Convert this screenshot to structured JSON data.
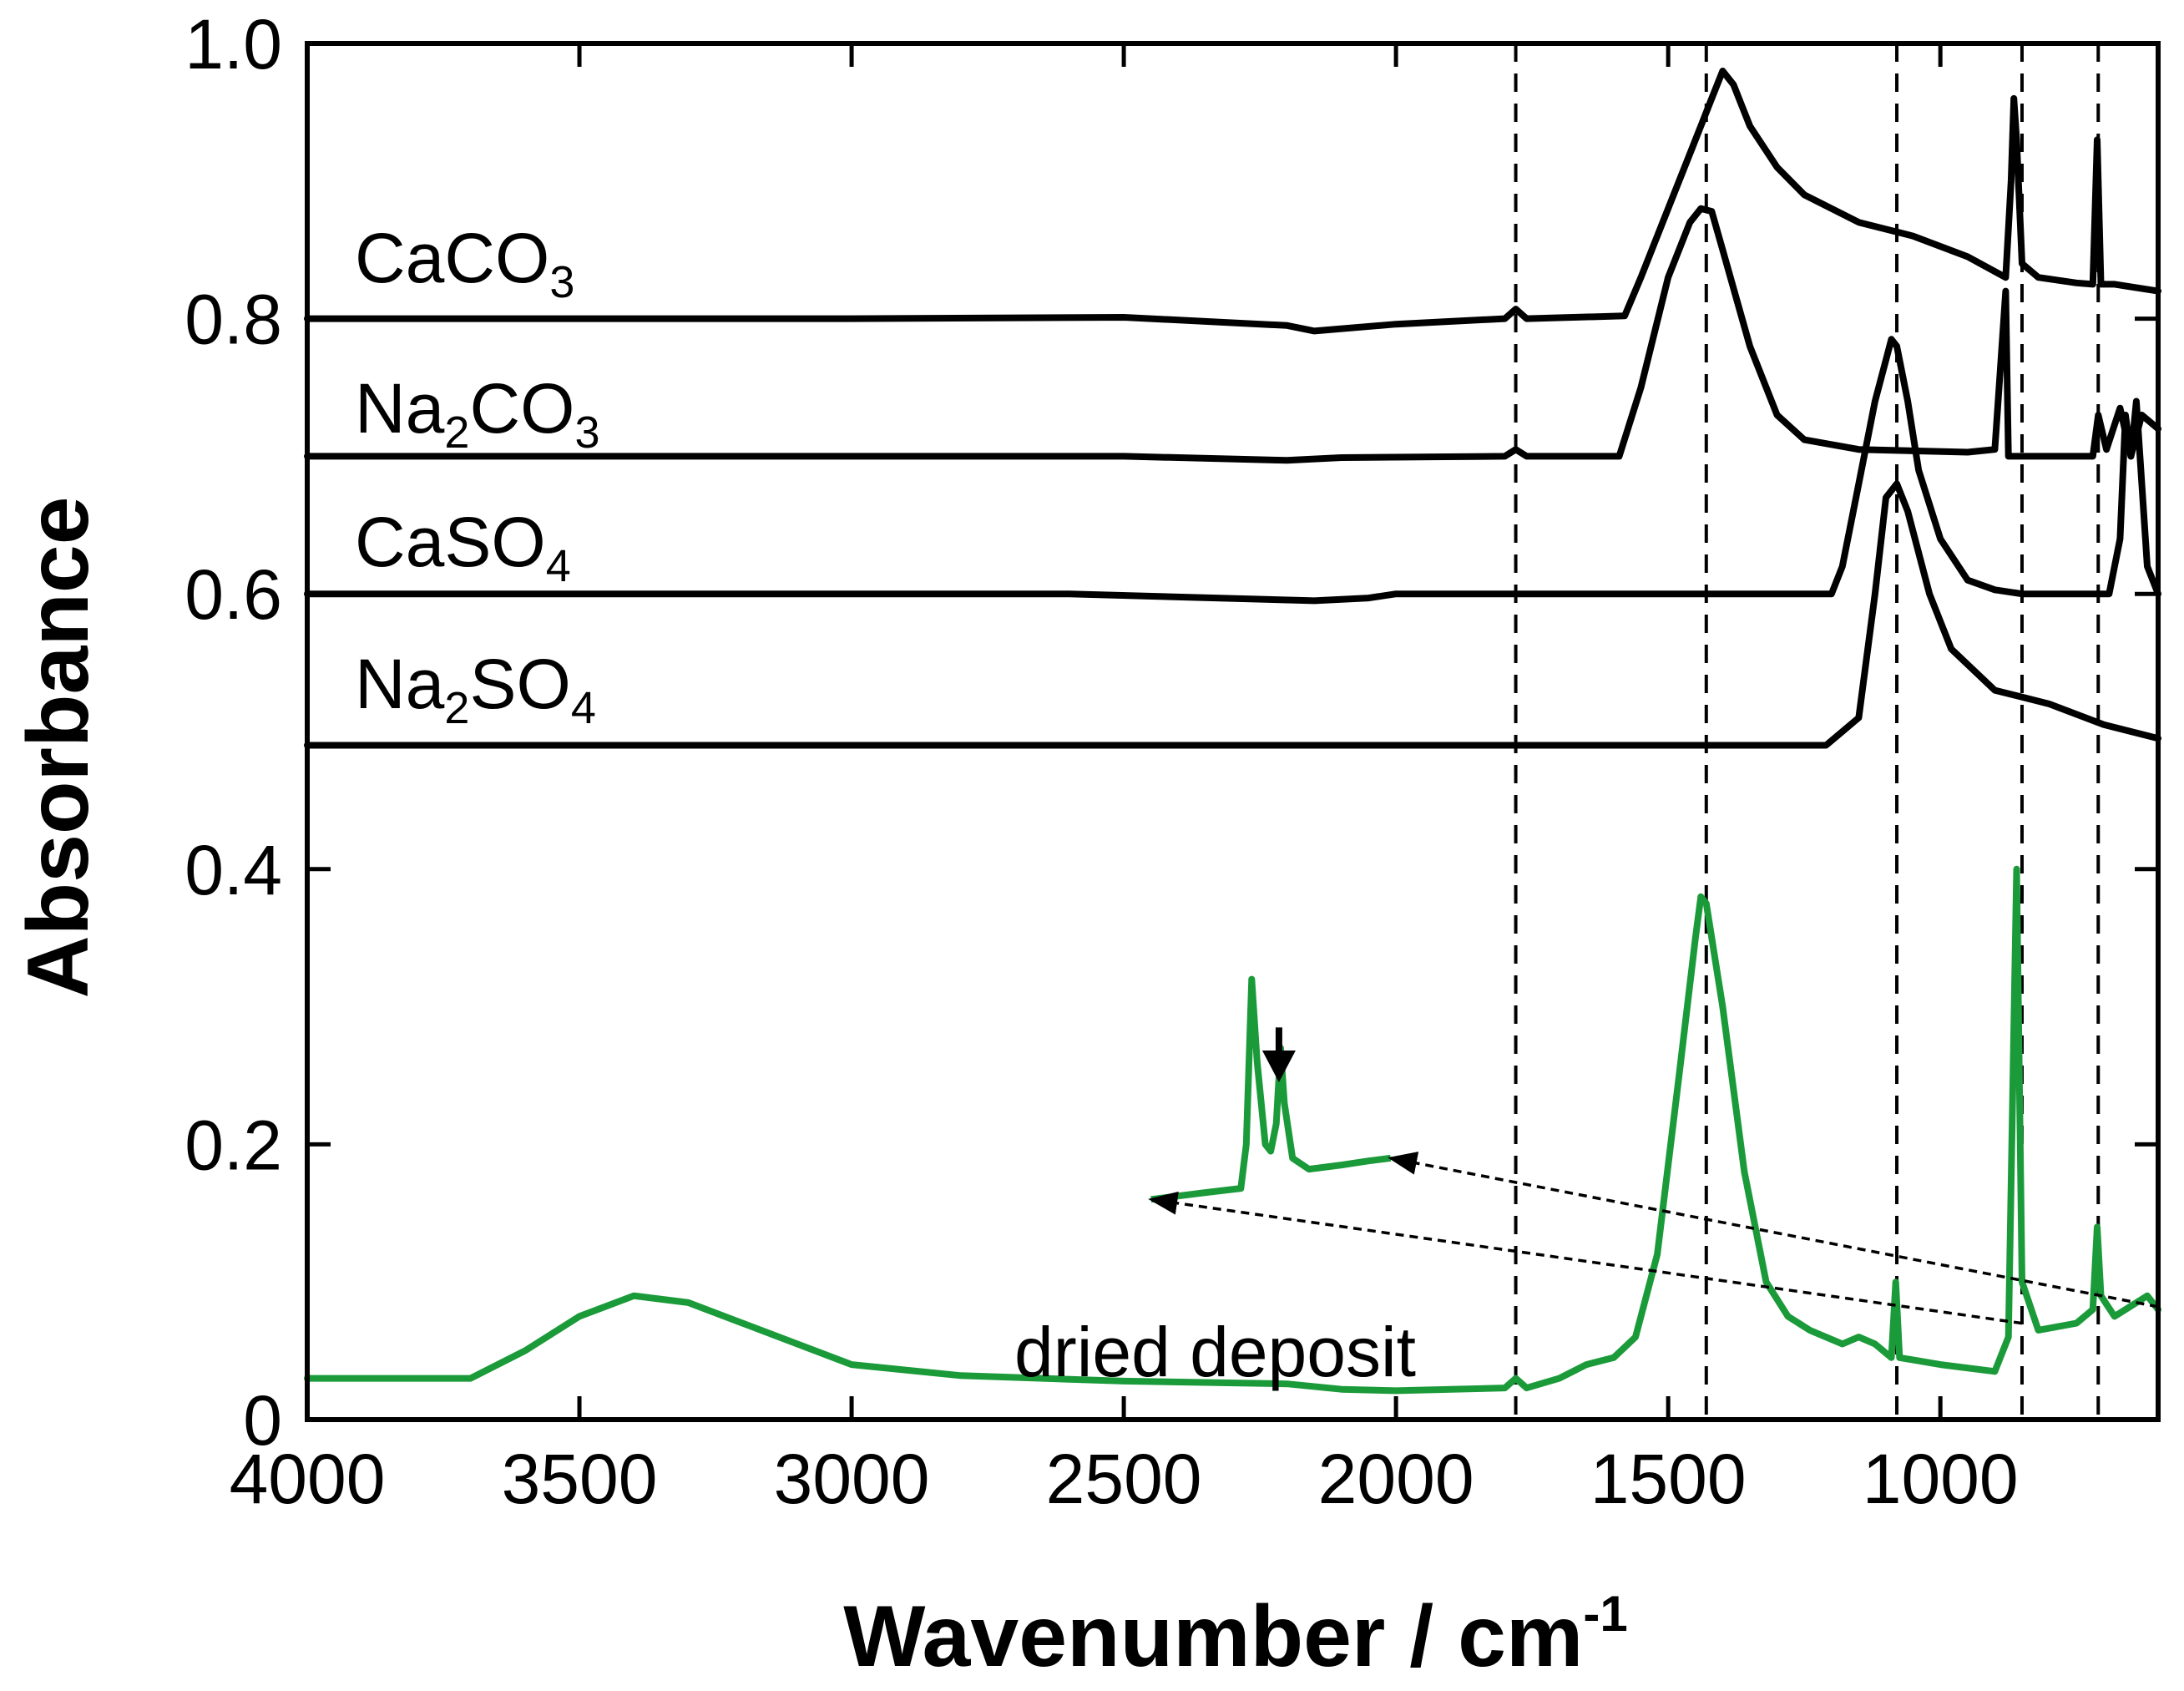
{
  "chart_data": {
    "type": "line",
    "xlabel": "Wavenumber / cm",
    "xlabel_superscript": "-1",
    "ylabel": "Absorbance",
    "xlim": [
      4000,
      600
    ],
    "ylim": [
      0,
      1.0
    ],
    "x_ticks": [
      4000,
      3500,
      3000,
      2500,
      2000,
      1500,
      1000
    ],
    "x_tick_labels": [
      "4000",
      "3500",
      "3000",
      "2500",
      "2000",
      "1500",
      "1000"
    ],
    "y_ticks": [
      0,
      0.2,
      0.4,
      0.6,
      0.8,
      1.0
    ],
    "y_tick_labels": [
      "0",
      "0.2",
      "0.4",
      "0.6",
      "0.8",
      "1.0"
    ],
    "reference_lines_x": [
      1780,
      1430,
      1080,
      850,
      710
    ],
    "series": [
      {
        "name": "CaCO3",
        "label_main": [
          "Ca",
          "CO"
        ],
        "label_sub": "3",
        "color": "#000000",
        "points": [
          [
            4000,
            0.8
          ],
          [
            3000,
            0.8
          ],
          [
            2500,
            0.801
          ],
          [
            2200,
            0.795
          ],
          [
            2150,
            0.791
          ],
          [
            2000,
            0.796
          ],
          [
            1800,
            0.8
          ],
          [
            1780,
            0.807
          ],
          [
            1760,
            0.8
          ],
          [
            1580,
            0.802
          ],
          [
            1550,
            0.83
          ],
          [
            1500,
            0.88
          ],
          [
            1450,
            0.93
          ],
          [
            1420,
            0.96
          ],
          [
            1400,
            0.98
          ],
          [
            1380,
            0.97
          ],
          [
            1350,
            0.94
          ],
          [
            1300,
            0.91
          ],
          [
            1250,
            0.89
          ],
          [
            1150,
            0.87
          ],
          [
            1050,
            0.86
          ],
          [
            950,
            0.845
          ],
          [
            880,
            0.83
          ],
          [
            870,
            0.9
          ],
          [
            865,
            0.96
          ],
          [
            860,
            0.93
          ],
          [
            850,
            0.84
          ],
          [
            820,
            0.83
          ],
          [
            750,
            0.826
          ],
          [
            720,
            0.825
          ],
          [
            712,
            0.93
          ],
          [
            705,
            0.825
          ],
          [
            680,
            0.825
          ],
          [
            600,
            0.82
          ]
        ]
      },
      {
        "name": "Na2CO3",
        "label_main": [
          "Na",
          "CO"
        ],
        "label_sub_1": "2",
        "label_sub_2": "3",
        "color": "#000000",
        "points": [
          [
            4000,
            0.7
          ],
          [
            2500,
            0.7
          ],
          [
            2200,
            0.697
          ],
          [
            2100,
            0.699
          ],
          [
            1800,
            0.7
          ],
          [
            1780,
            0.705
          ],
          [
            1760,
            0.7
          ],
          [
            1590,
            0.7
          ],
          [
            1550,
            0.75
          ],
          [
            1500,
            0.83
          ],
          [
            1460,
            0.87
          ],
          [
            1440,
            0.88
          ],
          [
            1420,
            0.878
          ],
          [
            1400,
            0.85
          ],
          [
            1350,
            0.78
          ],
          [
            1300,
            0.73
          ],
          [
            1250,
            0.712
          ],
          [
            1150,
            0.705
          ],
          [
            950,
            0.703
          ],
          [
            900,
            0.705
          ],
          [
            880,
            0.82
          ],
          [
            875,
            0.7
          ],
          [
            850,
            0.7
          ],
          [
            720,
            0.7
          ],
          [
            710,
            0.73
          ],
          [
            695,
            0.705
          ],
          [
            670,
            0.735
          ],
          [
            650,
            0.7
          ],
          [
            630,
            0.73
          ],
          [
            600,
            0.72
          ]
        ]
      },
      {
        "name": "CaSO4",
        "label_main": [
          "CaSO"
        ],
        "label_sub": "4",
        "color": "#000000",
        "points": [
          [
            4000,
            0.6
          ],
          [
            2600,
            0.6
          ],
          [
            2150,
            0.595
          ],
          [
            2050,
            0.597
          ],
          [
            2000,
            0.6
          ],
          [
            1200,
            0.6
          ],
          [
            1180,
            0.62
          ],
          [
            1150,
            0.68
          ],
          [
            1120,
            0.74
          ],
          [
            1100,
            0.77
          ],
          [
            1090,
            0.785
          ],
          [
            1080,
            0.78
          ],
          [
            1060,
            0.74
          ],
          [
            1040,
            0.69
          ],
          [
            1000,
            0.64
          ],
          [
            950,
            0.61
          ],
          [
            900,
            0.603
          ],
          [
            850,
            0.6
          ],
          [
            720,
            0.6
          ],
          [
            690,
            0.6
          ],
          [
            670,
            0.64
          ],
          [
            660,
            0.73
          ],
          [
            650,
            0.7
          ],
          [
            640,
            0.74
          ],
          [
            620,
            0.62
          ],
          [
            600,
            0.6
          ]
        ]
      },
      {
        "name": "Na2SO4",
        "label_main": [
          "Na",
          "SO"
        ],
        "label_sub_1": "2",
        "label_sub_2": "4",
        "color": "#000000",
        "points": [
          [
            4000,
            0.49
          ],
          [
            2500,
            0.49
          ],
          [
            1500,
            0.49
          ],
          [
            1210,
            0.49
          ],
          [
            1150,
            0.51
          ],
          [
            1120,
            0.6
          ],
          [
            1100,
            0.67
          ],
          [
            1080,
            0.68
          ],
          [
            1060,
            0.66
          ],
          [
            1020,
            0.6
          ],
          [
            980,
            0.56
          ],
          [
            900,
            0.53
          ],
          [
            850,
            0.525
          ],
          [
            800,
            0.52
          ],
          [
            700,
            0.505
          ],
          [
            600,
            0.495
          ]
        ]
      },
      {
        "name": "dried deposit",
        "label_main": [
          "dried deposit"
        ],
        "color": "#1b9a3a",
        "points": [
          [
            4000,
            0.03
          ],
          [
            3700,
            0.03
          ],
          [
            3600,
            0.05
          ],
          [
            3500,
            0.075
          ],
          [
            3400,
            0.09
          ],
          [
            3300,
            0.085
          ],
          [
            3200,
            0.07
          ],
          [
            3100,
            0.055
          ],
          [
            3000,
            0.04
          ],
          [
            2800,
            0.032
          ],
          [
            2500,
            0.028
          ],
          [
            2200,
            0.026
          ],
          [
            2100,
            0.022
          ],
          [
            2000,
            0.021
          ],
          [
            1800,
            0.023
          ],
          [
            1780,
            0.03
          ],
          [
            1760,
            0.023
          ],
          [
            1700,
            0.03
          ],
          [
            1650,
            0.04
          ],
          [
            1600,
            0.045
          ],
          [
            1560,
            0.06
          ],
          [
            1520,
            0.12
          ],
          [
            1480,
            0.25
          ],
          [
            1450,
            0.35
          ],
          [
            1440,
            0.38
          ],
          [
            1430,
            0.375
          ],
          [
            1400,
            0.3
          ],
          [
            1360,
            0.18
          ],
          [
            1320,
            0.1
          ],
          [
            1280,
            0.075
          ],
          [
            1240,
            0.065
          ],
          [
            1180,
            0.055
          ],
          [
            1150,
            0.06
          ],
          [
            1120,
            0.055
          ],
          [
            1090,
            0.045
          ],
          [
            1082,
            0.1
          ],
          [
            1075,
            0.045
          ],
          [
            1000,
            0.04
          ],
          [
            900,
            0.035
          ],
          [
            875,
            0.06
          ],
          [
            860,
            0.4
          ],
          [
            850,
            0.1
          ],
          [
            820,
            0.065
          ],
          [
            750,
            0.07
          ],
          [
            720,
            0.08
          ],
          [
            712,
            0.14
          ],
          [
            705,
            0.09
          ],
          [
            680,
            0.075
          ],
          [
            620,
            0.09
          ],
          [
            600,
            0.08
          ]
        ]
      }
    ],
    "inset": {
      "series_name": "dried deposit (magnified)",
      "color": "#1b9a3a",
      "points": [
        [
          2450,
          0.16
        ],
        [
          2350,
          0.165
        ],
        [
          2285,
          0.168
        ],
        [
          2275,
          0.2
        ],
        [
          2265,
          0.32
        ],
        [
          2255,
          0.26
        ],
        [
          2240,
          0.2
        ],
        [
          2230,
          0.195
        ],
        [
          2220,
          0.215
        ],
        [
          2212,
          0.27
        ],
        [
          2205,
          0.23
        ],
        [
          2190,
          0.19
        ],
        [
          2160,
          0.182
        ],
        [
          2100,
          0.185
        ],
        [
          2050,
          0.188
        ],
        [
          2010,
          0.19
        ]
      ],
      "arrow_at_x": 2215,
      "arrow_from_y": 0.285,
      "arrow_to_y": 0.25,
      "connectors": [
        {
          "from": [
            600,
            0.082
          ],
          "to": [
            2010,
            0.19
          ]
        },
        {
          "from": [
            850,
            0.07
          ],
          "to": [
            2450,
            0.16
          ]
        }
      ]
    }
  }
}
